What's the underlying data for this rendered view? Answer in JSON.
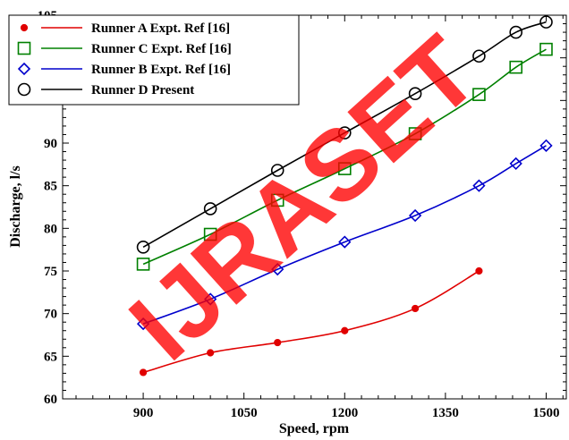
{
  "chart_data": {
    "type": "line",
    "title": "",
    "xlabel": "Speed, rpm",
    "ylabel": "Discharge, l/s",
    "xlim": [
      780,
      1530
    ],
    "ylim": [
      60,
      105
    ],
    "x_ticks": [
      900,
      1050,
      1200,
      1350,
      1500
    ],
    "y_ticks": [
      60,
      65,
      70,
      75,
      80,
      85,
      90,
      95,
      100,
      105
    ],
    "grid": false,
    "legend_position": "top-left",
    "series": [
      {
        "name": "Runner A Expt. Ref [16]",
        "color": "#e00000",
        "marker": "filled-circle",
        "x": [
          900,
          1000,
          1100,
          1200,
          1305,
          1400
        ],
        "y": [
          63.1,
          65.4,
          66.6,
          68.0,
          70.6,
          75.0
        ]
      },
      {
        "name": "Runner C Expt. Ref [16]",
        "color": "#008000",
        "marker": "open-square",
        "x": [
          900,
          1000,
          1100,
          1200,
          1305,
          1400,
          1455,
          1500
        ],
        "y": [
          75.8,
          79.3,
          83.3,
          87.0,
          91.1,
          95.7,
          98.9,
          101.0
        ]
      },
      {
        "name": "Runner B Expt. Ref [16]",
        "color": "#0000cc",
        "marker": "open-diamond",
        "x": [
          900,
          1000,
          1100,
          1200,
          1305,
          1400,
          1455,
          1500
        ],
        "y": [
          68.8,
          71.7,
          75.2,
          78.4,
          81.5,
          85.0,
          87.6,
          89.7
        ]
      },
      {
        "name": "Runner D Present",
        "color": "#000000",
        "marker": "open-circle",
        "x": [
          900,
          1000,
          1100,
          1200,
          1305,
          1400,
          1455,
          1500
        ],
        "y": [
          77.8,
          82.3,
          86.8,
          91.2,
          95.8,
          100.2,
          103.0,
          104.2
        ]
      }
    ]
  },
  "watermark": {
    "text": "IJRASET",
    "color": "#ff0000"
  }
}
